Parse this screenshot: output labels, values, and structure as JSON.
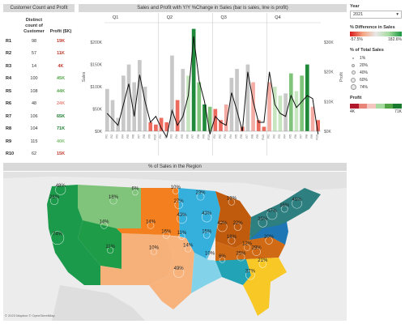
{
  "table": {
    "title": "Customer Count and Profit",
    "headers": [
      "",
      "Distinct count of Customer",
      "Profit ($K)"
    ],
    "rows": [
      {
        "region": "R1",
        "count": "98",
        "profit": "19K",
        "color": "#c0392b"
      },
      {
        "region": "R2",
        "count": "57",
        "profit": "11K",
        "color": "#c0392b"
      },
      {
        "region": "R3",
        "count": "14",
        "profit": "4K",
        "color": "#c0392b"
      },
      {
        "region": "R4",
        "count": "100",
        "profit": "45K",
        "color": "#52a447"
      },
      {
        "region": "R5",
        "count": "108",
        "profit": "44K",
        "color": "#52a447"
      },
      {
        "region": "R6",
        "count": "48",
        "profit": "24K",
        "color": "#e8847a"
      },
      {
        "region": "R7",
        "count": "106",
        "profit": "65K",
        "color": "#1a7a2e"
      },
      {
        "region": "R8",
        "count": "104",
        "profit": "71K",
        "color": "#1a7a2e"
      },
      {
        "region": "R9",
        "count": "115",
        "profit": "40K",
        "color": "#7bbf6e"
      },
      {
        "region": "R10",
        "count": "62",
        "profit": "15K",
        "color": "#c0392b"
      }
    ]
  },
  "chart": {
    "title": "Sales and Profit with Y/Y %Change in Sales (bar is sales, line is profit)",
    "quarters": [
      "Q1",
      "Q2",
      "Q3",
      "Q4"
    ],
    "left_axis_label": "Sales",
    "right_axis_label": "Profit",
    "left_ticks": [
      "$0K",
      "$50K",
      "$100K",
      "$150K",
      "$200K"
    ],
    "right_ticks": [
      "$0K",
      "$10K",
      "$20K",
      "$30K"
    ]
  },
  "chart_data": {
    "type": "bar",
    "title": "Sales and Profit with Y/Y %Change in Sales (bar is sales, line is profit)",
    "ylabel": "Sales",
    "y2label": "Profit",
    "ylim": [
      0,
      200
    ],
    "y2lim": [
      0,
      30
    ],
    "categories": [
      "Q1",
      "Q2",
      "Q3",
      "Q4"
    ],
    "bars_per_quarter": 10,
    "sales": [
      95,
      70,
      30,
      125,
      150,
      110,
      160,
      100,
      20,
      15,
      30,
      20,
      170,
      70,
      140,
      125,
      230,
      110,
      60,
      55,
      50,
      25,
      60,
      120,
      140,
      10,
      150,
      110,
      25,
      10,
      110,
      100,
      80,
      85,
      130,
      90,
      125,
      150,
      55,
      25
    ],
    "bar_color_class": [
      0,
      0,
      0,
      0,
      0,
      0,
      0,
      0,
      -2,
      -2,
      -2,
      -2,
      0,
      -2,
      0,
      1,
      3,
      2,
      3,
      2,
      -2,
      -2,
      -1,
      0,
      0,
      -2,
      0,
      -1,
      -2,
      -2,
      -1,
      1,
      1,
      0,
      2,
      1,
      2,
      3,
      -1,
      -2
    ],
    "profit": [
      6,
      4,
      2,
      9,
      16,
      5,
      19,
      10,
      3,
      5,
      1,
      -2,
      7,
      2,
      5,
      12,
      32,
      17,
      10,
      -1,
      5,
      3,
      2,
      13,
      7,
      0,
      20,
      10,
      3,
      3,
      20,
      9,
      6,
      5,
      12,
      8,
      10,
      12,
      11,
      -1
    ]
  },
  "side": {
    "year_label": "Year",
    "year_value": "2021",
    "pct_diff_title": "% Difference in Sales",
    "pct_diff_min": "-57.5%",
    "pct_diff_max": "182.6%",
    "pct_total_title": "% of Total Sales",
    "sizes": [
      "1%",
      "20%",
      "40%",
      "60%",
      "74%"
    ],
    "profit_title": "Profit",
    "profit_min": "4K",
    "profit_max": "71K"
  },
  "map": {
    "title": "% of Sales in the Region",
    "labels": [
      {
        "text": "48%",
        "x": 8,
        "y": 6
      },
      {
        "text": "6%",
        "x": 32,
        "y": 8
      },
      {
        "text": "28%",
        "x": 6,
        "y": 14
      },
      {
        "text": "18%",
        "x": 25,
        "y": 14
      },
      {
        "text": "74%",
        "x": 7,
        "y": 41
      },
      {
        "text": "14%",
        "x": 22,
        "y": 32
      },
      {
        "text": "14%",
        "x": 37,
        "y": 32
      },
      {
        "text": "16%",
        "x": 42,
        "y": 39
      },
      {
        "text": "11%",
        "x": 47,
        "y": 40
      },
      {
        "text": "11%",
        "x": 24,
        "y": 50
      },
      {
        "text": "10%",
        "x": 38,
        "y": 51
      },
      {
        "text": "10%",
        "x": 45,
        "y": 7
      },
      {
        "text": "27%",
        "x": 46,
        "y": 17
      },
      {
        "text": "43%",
        "x": 47,
        "y": 27
      },
      {
        "text": "23%",
        "x": 53,
        "y": 11
      },
      {
        "text": "13%",
        "x": 63,
        "y": 15
      },
      {
        "text": "43%",
        "x": 55,
        "y": 26
      },
      {
        "text": "15%",
        "x": 55,
        "y": 39
      },
      {
        "text": "14%",
        "x": 49,
        "y": 49
      },
      {
        "text": "49%",
        "x": 46,
        "y": 66
      },
      {
        "text": "10%",
        "x": 56,
        "y": 55
      },
      {
        "text": "6%",
        "x": 60,
        "y": 57
      },
      {
        "text": "18%",
        "x": 63,
        "y": 43
      },
      {
        "text": "42%",
        "x": 60,
        "y": 33
      },
      {
        "text": "22%",
        "x": 65,
        "y": 33
      },
      {
        "text": "35%",
        "x": 73,
        "y": 30
      },
      {
        "text": "47%",
        "x": 76,
        "y": 24
      },
      {
        "text": "16%",
        "x": 80,
        "y": 20
      },
      {
        "text": "45%",
        "x": 84,
        "y": 16
      },
      {
        "text": "12%",
        "x": 68,
        "y": 48
      },
      {
        "text": "25%",
        "x": 66,
        "y": 55
      },
      {
        "text": "29%",
        "x": 71,
        "y": 51
      },
      {
        "text": "21%",
        "x": 73,
        "y": 60
      },
      {
        "text": "20%",
        "x": 75,
        "y": 43
      },
      {
        "text": "37%",
        "x": 69,
        "y": 68
      }
    ],
    "copyright": "© 2023 Mapbox © OpenStreetMap"
  }
}
